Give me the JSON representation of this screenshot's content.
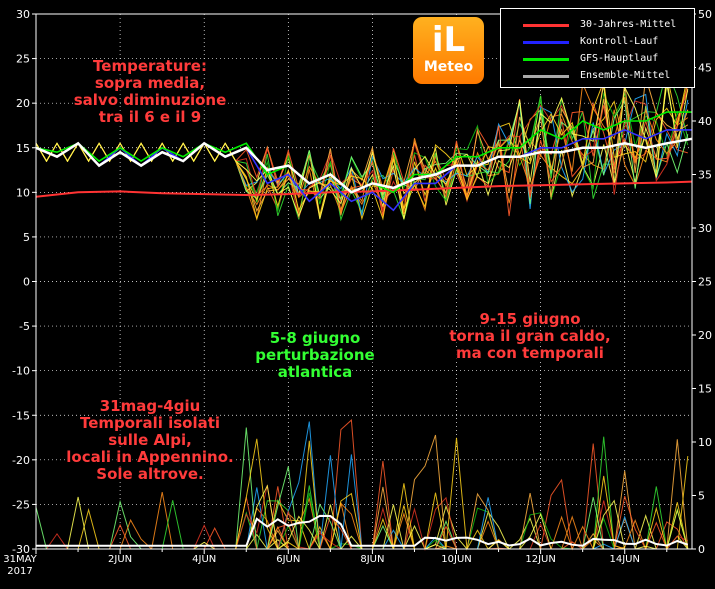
{
  "chart_data": {
    "type": "line",
    "y_left": {
      "min": -30,
      "max": 30,
      "ticks": [
        -30,
        -25,
        -20,
        -15,
        -10,
        -5,
        0,
        5,
        10,
        15,
        20,
        25,
        30
      ]
    },
    "y_right": {
      "min": 0,
      "max": 50,
      "ticks": [
        0,
        5,
        10,
        15,
        20,
        25,
        30,
        35,
        40,
        45,
        50
      ]
    },
    "x_ticks": [
      "31MAY",
      "2JUN",
      "4JUN",
      "6JUN",
      "8JUN",
      "10JUN",
      "12JUN",
      "14JUN"
    ],
    "x_year": "2017",
    "x_range_days": [
      0,
      15.6
    ],
    "series": [
      {
        "name": "30-Jahres-Mittel",
        "color": "#ff3333",
        "x": [
          0,
          1,
          2,
          3,
          4,
          5,
          6,
          7,
          8,
          9,
          10,
          11,
          12,
          13,
          14,
          15,
          15.6
        ],
        "y": [
          9.5,
          10,
          10.1,
          9.9,
          9.8,
          9.7,
          9.8,
          10,
          10.1,
          10.3,
          10.5,
          10.7,
          10.8,
          10.9,
          11,
          11.1,
          11.2
        ]
      },
      {
        "name": "Kontroll-Lauf",
        "color": "#3333ff",
        "x": [
          0,
          0.5,
          1,
          1.5,
          2,
          2.5,
          3,
          3.5,
          4,
          4.5,
          5,
          5.5,
          6,
          6.5,
          7,
          7.5,
          8,
          8.5,
          9,
          9.5,
          10,
          10.5,
          11,
          11.5,
          12,
          12.5,
          13,
          13.5,
          14,
          14.5,
          15,
          15.6
        ],
        "y": [
          15,
          14,
          15.5,
          13,
          15,
          13,
          15,
          13.5,
          15.5,
          14,
          15,
          11,
          12,
          9,
          11,
          9,
          10,
          8,
          11,
          11,
          13,
          13,
          14,
          14,
          15,
          15,
          16,
          16,
          17,
          16,
          17,
          17
        ]
      },
      {
        "name": "GFS-Hauptlauf",
        "color": "#00ee00",
        "x": [
          0,
          0.5,
          1,
          1.5,
          2,
          2.5,
          3,
          3.5,
          4,
          4.5,
          5,
          5.5,
          6,
          6.5,
          7,
          7.5,
          8,
          8.5,
          9,
          9.5,
          10,
          10.5,
          11,
          11.5,
          12,
          12.5,
          13,
          13.5,
          14,
          14.5,
          15,
          15.6
        ],
        "y": [
          15,
          14.5,
          15.5,
          13.5,
          15,
          13.5,
          15,
          14,
          15.5,
          14.5,
          15.5,
          12,
          13,
          11,
          12,
          10,
          11,
          10,
          12,
          12,
          14,
          14,
          15,
          15,
          17,
          16,
          18,
          17,
          18,
          18,
          19,
          19
        ]
      },
      {
        "name": "Ensemble-Mittel",
        "color": "#ffffff",
        "x": [
          0,
          0.5,
          1,
          1.5,
          2,
          2.5,
          3,
          3.5,
          4,
          4.5,
          5,
          5.5,
          6,
          6.5,
          7,
          7.5,
          8,
          8.5,
          9,
          9.5,
          10,
          10.5,
          11,
          11.5,
          12,
          12.5,
          13,
          13.5,
          14,
          14.5,
          15,
          15.6
        ],
        "y": [
          15,
          14,
          15.5,
          13,
          14.5,
          13,
          14.5,
          13.5,
          15.5,
          14,
          15,
          12.5,
          13,
          11,
          12,
          10,
          11,
          10.5,
          11.5,
          12,
          13,
          13,
          14,
          14,
          14.5,
          14.5,
          15,
          15,
          15.5,
          15,
          15.5,
          16
        ]
      }
    ]
  },
  "legend": {
    "items": [
      {
        "label": "30-Jahres-Mittel",
        "color": "#ff3333"
      },
      {
        "label": "Kontroll-Lauf",
        "color": "#2222ff"
      },
      {
        "label": "GFS-Hauptlauf",
        "color": "#00ee00"
      },
      {
        "label": "Ensemble-Mittel",
        "color": "#aaaaaa"
      }
    ]
  },
  "logo": {
    "mark": "iL",
    "name": "Meteo"
  },
  "annotations": {
    "temperature": "Temperature:\nsopra media,\nsalvo diminuzione\ntra il 6 e il 9",
    "storms": "31mag-4giu\nTemporali isolati\nsulle Alpi,\nlocali in Appennino.\nSole altrove.",
    "atlantic": "5-8 giugno\nperturbazione\natlantica",
    "heat": "9-15 giugno\ntorna il gran caldo,\nma con temporali"
  }
}
